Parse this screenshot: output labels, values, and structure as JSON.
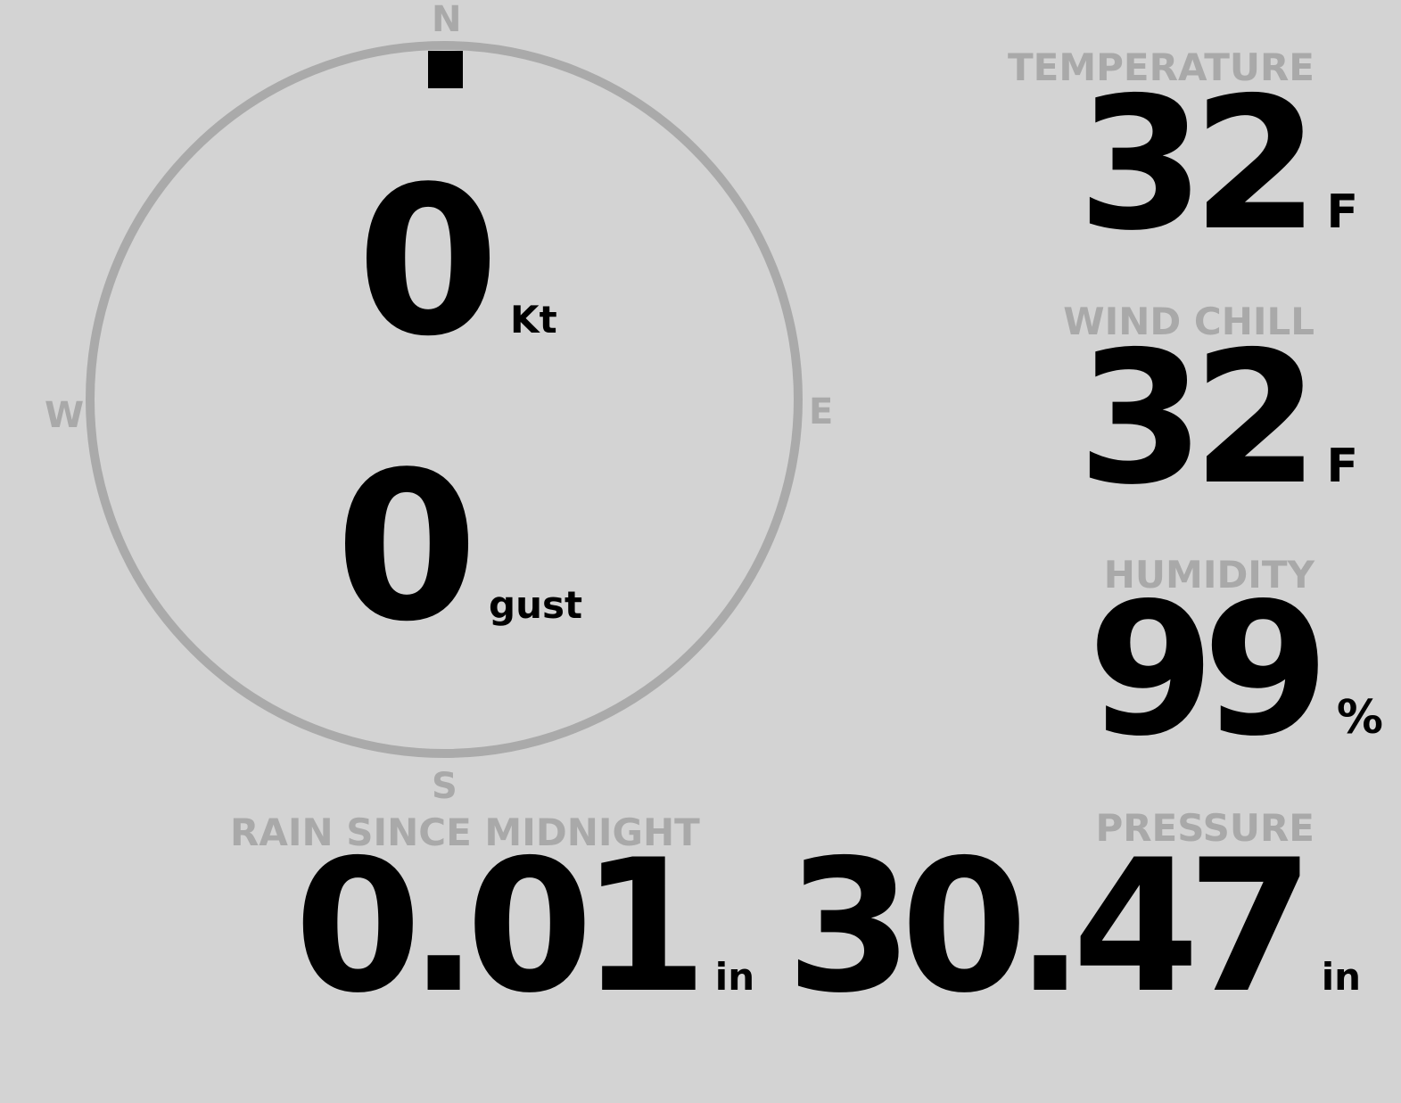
{
  "compass": {
    "cardinals": {
      "n": "N",
      "e": "E",
      "s": "S",
      "w": "W"
    },
    "direction_deg": 0,
    "ring_color": "#aaaaaa",
    "marker_color": "#000000"
  },
  "wind": {
    "speed": "0",
    "speed_unit": "Kt",
    "gust": "0",
    "gust_unit": "gust"
  },
  "temperature": {
    "label": "TEMPERATURE",
    "value": "32",
    "unit": "F"
  },
  "wind_chill": {
    "label": "WIND CHILL",
    "value": "32",
    "unit": "F"
  },
  "humidity": {
    "label": "HUMIDITY",
    "value": "99",
    "unit": "%"
  },
  "rain": {
    "label": "RAIN SINCE MIDNIGHT",
    "value": "0.01",
    "unit": "in"
  },
  "pressure": {
    "label": "PRESSURE",
    "value": "30.47",
    "unit": "in"
  },
  "colors": {
    "background": "#d3d3d3",
    "label": "#a9a9a9",
    "value": "#000000"
  }
}
